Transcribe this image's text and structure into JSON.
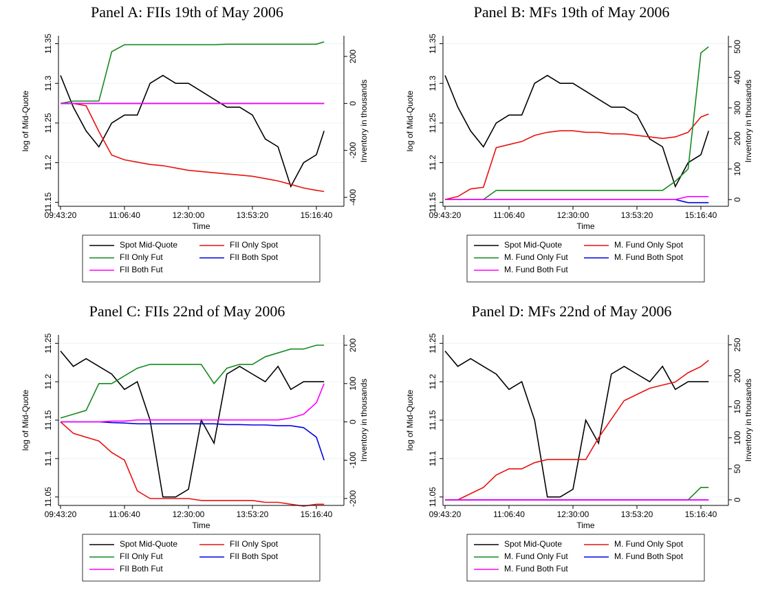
{
  "chart_data": [
    {
      "type": "line",
      "title": "Panel A: FIIs 19th of May 2006",
      "x_label": "Time",
      "y_label": "log of Mid-Quote",
      "y2_label": "Inventory in thousands",
      "x": [
        35000,
        36000,
        37000,
        38000,
        39000,
        40000,
        41000,
        42000,
        43000,
        44000,
        45000,
        46000,
        47000,
        48000,
        49000,
        50000,
        51000,
        52000,
        53000,
        54000,
        55000,
        55600
      ],
      "xlim": [
        34840,
        57150
      ],
      "xticks": [
        {
          "value": 35000,
          "label": "09:43:20"
        },
        {
          "value": 40000,
          "label": "11:06:40"
        },
        {
          "value": 45000,
          "label": "12:30:00"
        },
        {
          "value": 50000,
          "label": "13:53:20"
        },
        {
          "value": 55000,
          "label": "15:16:40"
        }
      ],
      "ylim": [
        11.145,
        11.36
      ],
      "yticks": [
        11.15,
        11.2,
        11.25,
        11.3,
        11.35
      ],
      "y2lim": [
        -438,
        288
      ],
      "y2ticks": [
        -400,
        -200,
        0,
        200
      ],
      "series": [
        {
          "name": "Spot Mid-Quote",
          "color": "#000000",
          "values": [
            11.31,
            11.27,
            11.24,
            11.22,
            11.25,
            11.26,
            11.26,
            11.3,
            11.31,
            11.3,
            11.3,
            11.29,
            11.28,
            11.27,
            11.27,
            11.26,
            11.23,
            11.22,
            11.17,
            11.2,
            11.21,
            11.24
          ]
        },
        {
          "name": "FII Only Spot",
          "color": "#e8110f",
          "axis": "y2",
          "values": [
            0,
            0,
            -10,
            -120,
            -220,
            -240,
            -250,
            -260,
            -265,
            -275,
            -285,
            -290,
            -295,
            -300,
            -305,
            -310,
            -320,
            -330,
            -345,
            -360,
            -370,
            -375
          ]
        },
        {
          "name": "FII Only Fut",
          "color": "#14891e",
          "axis": "y2",
          "values": [
            0,
            10,
            10,
            10,
            220,
            250,
            250,
            250,
            250,
            250,
            250,
            250,
            250,
            252,
            252,
            252,
            252,
            252,
            252,
            252,
            252,
            262
          ]
        },
        {
          "name": "FII Both Spot",
          "color": "#0000e6",
          "axis": "y2",
          "values": [
            0,
            0,
            0,
            0,
            0,
            0,
            0,
            0,
            0,
            0,
            0,
            0,
            0,
            0,
            0,
            0,
            0,
            0,
            0,
            0,
            0,
            0
          ]
        },
        {
          "name": "FII Both Fut",
          "color": "#ff00ff",
          "axis": "y2",
          "values": [
            0,
            0,
            0,
            0,
            0,
            0,
            0,
            0,
            0,
            0,
            0,
            0,
            0,
            0,
            0,
            0,
            0,
            0,
            0,
            0,
            0,
            0
          ]
        }
      ]
    },
    {
      "type": "line",
      "title": "Panel B: MFs 19th of May 2006",
      "x_label": "Time",
      "y_label": "log of Mid-Quote",
      "y2_label": "Inventory in thousands",
      "x": [
        35000,
        36000,
        37000,
        38000,
        39000,
        40000,
        41000,
        42000,
        43000,
        44000,
        45000,
        46000,
        47000,
        48000,
        49000,
        50000,
        51000,
        52000,
        53000,
        54000,
        55000,
        55600
      ],
      "xlim": [
        34840,
        57150
      ],
      "xticks": [
        {
          "value": 35000,
          "label": "09:43:20"
        },
        {
          "value": 40000,
          "label": "11:06:40"
        },
        {
          "value": 45000,
          "label": "12:30:00"
        },
        {
          "value": 50000,
          "label": "13:53:20"
        },
        {
          "value": 55000,
          "label": "15:16:40"
        }
      ],
      "ylim": [
        11.145,
        11.36
      ],
      "yticks": [
        11.15,
        11.2,
        11.25,
        11.3,
        11.35
      ],
      "y2lim": [
        -22,
        536
      ],
      "y2ticks": [
        0,
        100,
        200,
        300,
        400,
        500
      ],
      "series": [
        {
          "name": "Spot Mid-Quote",
          "color": "#000000",
          "values": [
            11.31,
            11.27,
            11.24,
            11.22,
            11.25,
            11.26,
            11.26,
            11.3,
            11.31,
            11.3,
            11.3,
            11.29,
            11.28,
            11.27,
            11.27,
            11.26,
            11.23,
            11.22,
            11.17,
            11.2,
            11.21,
            11.24
          ]
        },
        {
          "name": "M. Fund Only Spot",
          "color": "#e8110f",
          "axis": "y2",
          "values": [
            0,
            10,
            35,
            40,
            170,
            180,
            190,
            210,
            220,
            225,
            225,
            220,
            220,
            215,
            215,
            210,
            205,
            200,
            205,
            220,
            270,
            280
          ]
        },
        {
          "name": "M. Fund Only Fut",
          "color": "#14891e",
          "axis": "y2",
          "values": [
            0,
            0,
            0,
            0,
            30,
            30,
            30,
            30,
            30,
            30,
            30,
            30,
            30,
            30,
            30,
            30,
            30,
            30,
            60,
            100,
            480,
            500
          ]
        },
        {
          "name": "M. Fund Both Spot",
          "color": "#0000e6",
          "axis": "y2",
          "values": [
            0,
            0,
            0,
            0,
            0,
            0,
            0,
            0,
            0,
            0,
            0,
            0,
            0,
            0,
            0,
            0,
            0,
            0,
            0,
            -10,
            -10,
            -10
          ]
        },
        {
          "name": "M. Fund Both Fut",
          "color": "#ff00ff",
          "axis": "y2",
          "values": [
            0,
            0,
            0,
            0,
            0,
            0,
            0,
            0,
            0,
            0,
            0,
            0,
            0,
            0,
            0,
            0,
            0,
            0,
            0,
            10,
            10,
            10
          ]
        }
      ]
    },
    {
      "type": "line",
      "title": "Panel C: FIIs 22nd of May 2006",
      "x_label": "Time",
      "y_label": "log of Mid-Quote",
      "y2_label": "Inventory in thousands",
      "x": [
        35000,
        36000,
        37000,
        38000,
        39000,
        40000,
        41000,
        42000,
        43000,
        44000,
        45000,
        46000,
        47000,
        48000,
        49000,
        50000,
        51000,
        52000,
        53000,
        54000,
        55000,
        55600
      ],
      "xlim": [
        34840,
        57150
      ],
      "xticks": [
        {
          "value": 35000,
          "label": "09:43:20"
        },
        {
          "value": 40000,
          "label": "11:06:40"
        },
        {
          "value": 45000,
          "label": "12:30:00"
        },
        {
          "value": 50000,
          "label": "13:53:20"
        },
        {
          "value": 55000,
          "label": "15:16:40"
        }
      ],
      "ylim": [
        11.039,
        11.261
      ],
      "yticks": [
        11.05,
        11.1,
        11.15,
        11.2,
        11.25
      ],
      "y2lim": [
        -218,
        227
      ],
      "y2ticks": [
        -200,
        -100,
        0,
        100,
        200
      ],
      "series": [
        {
          "name": "Spot Mid-Quote",
          "color": "#000000",
          "values": [
            11.24,
            11.22,
            11.23,
            11.22,
            11.21,
            11.19,
            11.2,
            11.15,
            11.05,
            11.05,
            11.06,
            11.15,
            11.12,
            11.21,
            11.22,
            11.21,
            11.2,
            11.22,
            11.19,
            11.2,
            11.2,
            11.2
          ]
        },
        {
          "name": "FII Only Spot",
          "color": "#e8110f",
          "axis": "y2",
          "values": [
            0,
            -30,
            -40,
            -50,
            -80,
            -100,
            -180,
            -200,
            -200,
            -200,
            -200,
            -205,
            -205,
            -205,
            -205,
            -205,
            -210,
            -210,
            -215,
            -220,
            -215,
            -215
          ]
        },
        {
          "name": "FII Only Fut",
          "color": "#14891e",
          "axis": "y2",
          "values": [
            10,
            20,
            30,
            100,
            100,
            120,
            140,
            150,
            150,
            150,
            150,
            150,
            100,
            140,
            150,
            150,
            170,
            180,
            190,
            190,
            200,
            200
          ]
        },
        {
          "name": "FII Both Spot",
          "color": "#0000e6",
          "axis": "y2",
          "values": [
            0,
            0,
            0,
            0,
            -2,
            -3,
            -5,
            -5,
            -5,
            -5,
            -5,
            -5,
            -5,
            -7,
            -7,
            -8,
            -8,
            -10,
            -10,
            -15,
            -40,
            -100
          ]
        },
        {
          "name": "FII Both Fut",
          "color": "#ff00ff",
          "axis": "y2",
          "values": [
            0,
            0,
            0,
            0,
            2,
            2,
            5,
            5,
            5,
            5,
            5,
            5,
            5,
            5,
            5,
            5,
            5,
            5,
            10,
            20,
            50,
            100
          ]
        }
      ]
    },
    {
      "type": "line",
      "title": "Panel D: MFs 22nd of May 2006",
      "x_label": "Time",
      "y_label": "log of Mid-Quote",
      "y2_label": "Inventory in thousands",
      "x": [
        35000,
        36000,
        37000,
        38000,
        39000,
        40000,
        41000,
        42000,
        43000,
        44000,
        45000,
        46000,
        47000,
        48000,
        49000,
        50000,
        51000,
        52000,
        53000,
        54000,
        55000,
        55600
      ],
      "xlim": [
        34840,
        57150
      ],
      "xticks": [
        {
          "value": 35000,
          "label": "09:43:20"
        },
        {
          "value": 40000,
          "label": "11:06:40"
        },
        {
          "value": 45000,
          "label": "12:30:00"
        },
        {
          "value": 50000,
          "label": "13:53:20"
        },
        {
          "value": 55000,
          "label": "15:16:40"
        }
      ],
      "ylim": [
        11.039,
        11.261
      ],
      "yticks": [
        11.05,
        11.1,
        11.15,
        11.2,
        11.25
      ],
      "y2lim": [
        -9,
        266
      ],
      "y2ticks": [
        0,
        50,
        100,
        150,
        200,
        250
      ],
      "series": [
        {
          "name": "Spot Mid-Quote",
          "color": "#000000",
          "values": [
            11.24,
            11.22,
            11.23,
            11.22,
            11.21,
            11.19,
            11.2,
            11.15,
            11.05,
            11.05,
            11.06,
            11.15,
            11.12,
            11.21,
            11.22,
            11.21,
            11.2,
            11.22,
            11.19,
            11.2,
            11.2,
            11.2
          ]
        },
        {
          "name": "M. Fund Only Spot",
          "color": "#e8110f",
          "axis": "y2",
          "values": [
            0,
            0,
            10,
            20,
            40,
            50,
            50,
            60,
            65,
            65,
            65,
            65,
            100,
            130,
            160,
            170,
            180,
            185,
            190,
            205,
            215,
            225
          ]
        },
        {
          "name": "M. Fund Only Fut",
          "color": "#14891e",
          "axis": "y2",
          "values": [
            0,
            0,
            0,
            0,
            0,
            0,
            0,
            0,
            0,
            0,
            0,
            0,
            0,
            0,
            0,
            0,
            0,
            0,
            0,
            0,
            20,
            20
          ]
        },
        {
          "name": "M. Fund Both Spot",
          "color": "#0000e6",
          "axis": "y2",
          "values": [
            0,
            0,
            0,
            0,
            0,
            0,
            0,
            0,
            0,
            0,
            0,
            0,
            0,
            0,
            0,
            0,
            0,
            0,
            0,
            0,
            0,
            0
          ]
        },
        {
          "name": "M. Fund Both Fut",
          "color": "#ff00ff",
          "axis": "y2",
          "values": [
            0,
            0,
            0,
            0,
            0,
            0,
            0,
            0,
            0,
            0,
            0,
            0,
            0,
            0,
            0,
            0,
            0,
            0,
            0,
            0,
            0,
            0
          ]
        }
      ]
    }
  ]
}
